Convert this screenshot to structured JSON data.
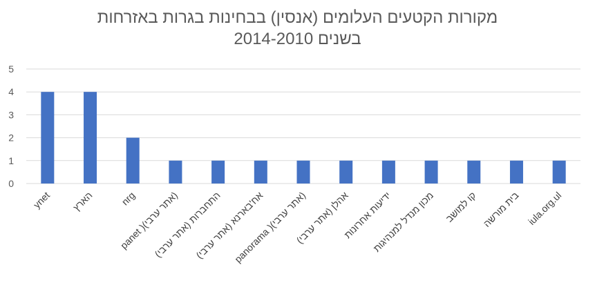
{
  "chart_data": {
    "type": "bar",
    "title_lines": [
      "מקורות הקטעים העלומים (אנסין) בבחינות בגרות באזרחות",
      "בשנים 2014-2010"
    ],
    "categories": [
      "ynet",
      "הארץ",
      "nrg",
      "panet )(אתר ערבי)",
      "התחברות (אתר ערבי)",
      "אח'בארנא (אתר ערבי)",
      "panorama )(אתר ערבי)",
      "אהלן (אתר ערבי)",
      "ידיעות אחרונות",
      "מכון מנדל למנהיגות",
      "קו למושב",
      "בית מורשה",
      "iula.org.ul"
    ],
    "values": [
      4,
      4,
      2,
      1,
      1,
      1,
      1,
      1,
      1,
      1,
      1,
      1,
      1
    ],
    "yticks": [
      0,
      1,
      2,
      3,
      4,
      5
    ],
    "ylim": [
      0,
      5
    ],
    "bar_color": "#4472C4",
    "grid_color": "#D9D9D9",
    "grid": true,
    "legend": "none"
  }
}
